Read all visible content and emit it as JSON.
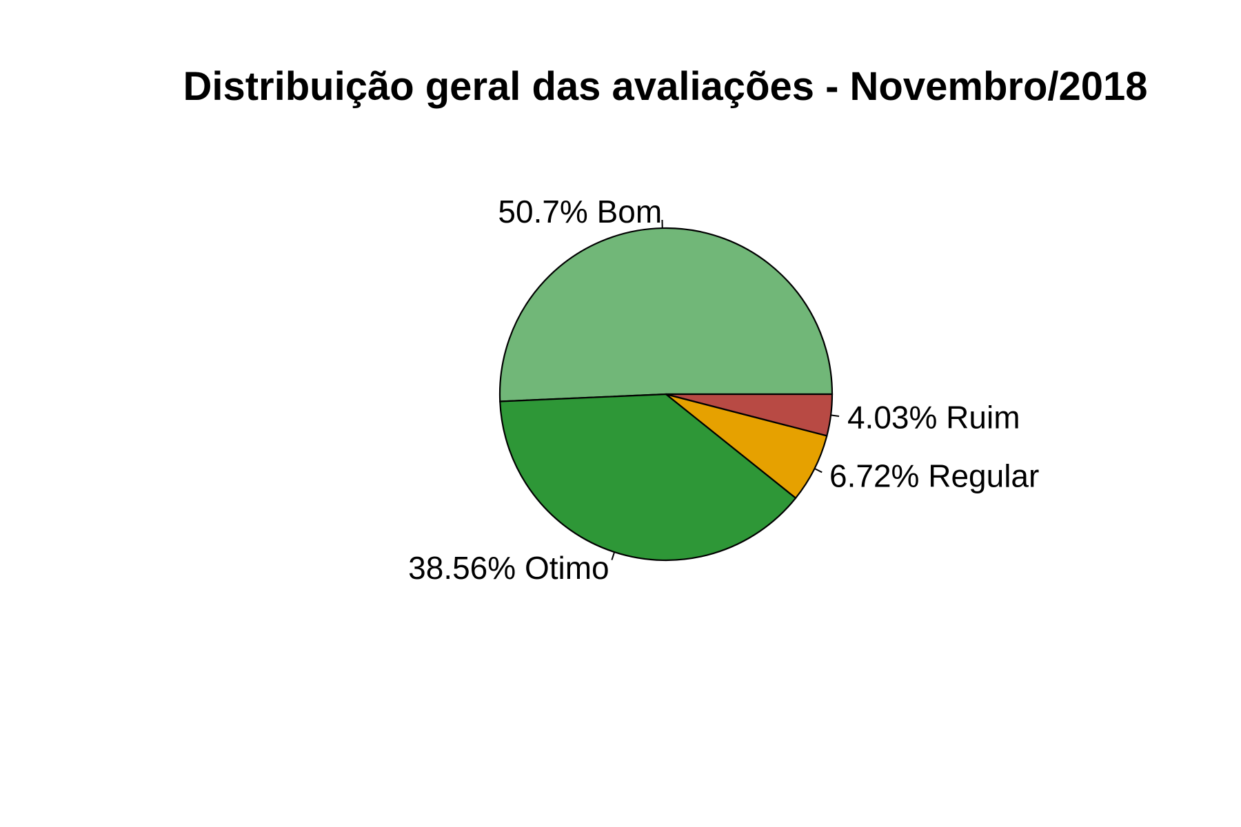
{
  "chart_data": {
    "type": "pie",
    "title": "Distribuição geral das avaliações - Novembro/2018",
    "start_angle_deg": 0,
    "direction": "counterclockwise",
    "slices": [
      {
        "label": "Bom",
        "value": 50.7,
        "display": "50.7% Bom",
        "color": "#71B778"
      },
      {
        "label": "Otimo",
        "value": 38.56,
        "display": "38.56% Otimo",
        "color": "#2E9737"
      },
      {
        "label": "Regular",
        "value": 6.72,
        "display": "6.72% Regular",
        "color": "#E6A100"
      },
      {
        "label": "Ruim",
        "value": 4.03,
        "display": "4.03% Ruim",
        "color": "#B84A44"
      }
    ]
  }
}
